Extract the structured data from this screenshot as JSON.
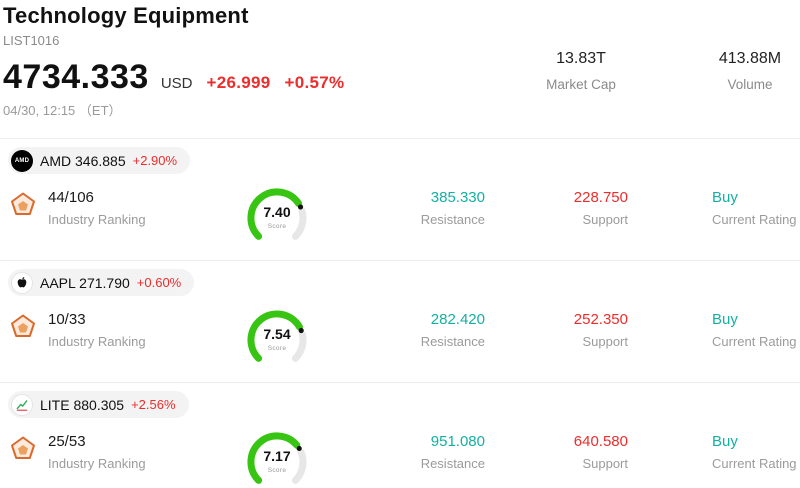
{
  "header": {
    "title": "Technology Equipment",
    "list_id": "LIST1016",
    "price": "4734.333",
    "currency": "USD",
    "change": "+26.999",
    "change_pct": "+0.57%",
    "change_combined": "+26.999  +0.57%",
    "timestamp": "04/30, 12:15 （ET）",
    "stats": [
      {
        "value": "13.83T",
        "label": "Market Cap"
      },
      {
        "value": "413.88M",
        "label": "Volume"
      }
    ]
  },
  "labels": {
    "industry_ranking": "Industry Ranking",
    "resistance": "Resistance",
    "support": "Support",
    "current_rating": "Current Rating",
    "score": "Score"
  },
  "colors": {
    "up": "#ee2c2c",
    "teal": "#14b0a1",
    "gauge_green": "#38c412",
    "gauge_track": "#e7e7e7"
  },
  "gauge": {
    "min": 0,
    "max": 10
  },
  "stocks": [
    {
      "symbol": "AMD",
      "icon": "amd-logo-icon",
      "price": "346.885",
      "change_pct": "+2.90%",
      "industry_ranking": "44/106",
      "score": 7.4,
      "score_text": "7.40",
      "resistance": "385.330",
      "support": "228.750",
      "rating": "Buy"
    },
    {
      "symbol": "AAPL",
      "icon": "apple-logo-icon",
      "price": "271.790",
      "change_pct": "+0.60%",
      "industry_ranking": "10/33",
      "score": 7.54,
      "score_text": "7.54",
      "resistance": "282.420",
      "support": "252.350",
      "rating": "Buy"
    },
    {
      "symbol": "LITE",
      "icon": "lite-chart-icon",
      "price": "880.305",
      "change_pct": "+2.56%",
      "industry_ranking": "25/53",
      "score": 7.17,
      "score_text": "7.17",
      "resistance": "951.080",
      "support": "640.580",
      "rating": "Buy"
    }
  ]
}
